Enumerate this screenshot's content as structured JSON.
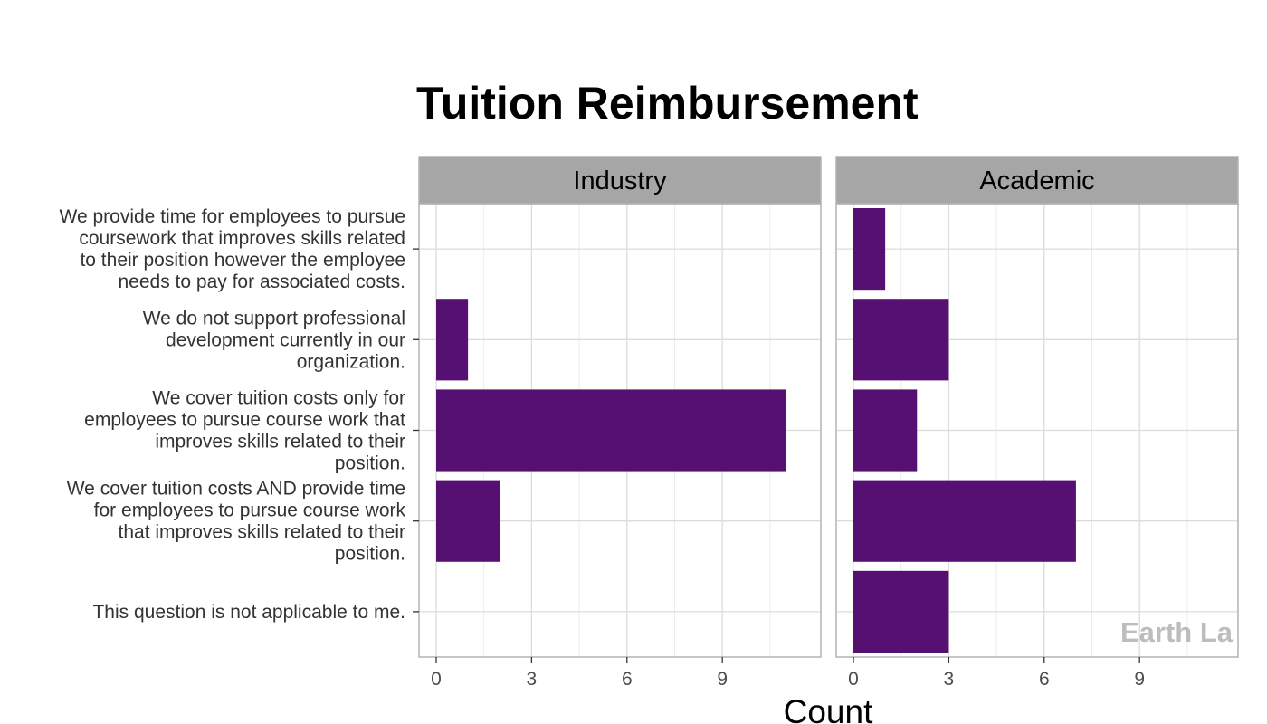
{
  "chart_data": {
    "type": "bar",
    "orientation": "horizontal",
    "title": "Tuition Reimbursement",
    "xlabel": "Count",
    "ylabel": "",
    "xlim": [
      0,
      11.5
    ],
    "xticks": [
      0,
      3,
      6,
      9
    ],
    "grid": true,
    "bar_color": "#551072",
    "categories": [
      [
        "We provide time for employees to pursue",
        "coursework that improves skills related",
        "to their position however the employee",
        "needs to pay for associated costs."
      ],
      [
        "We do not support professional",
        "development currently in our",
        "organization."
      ],
      [
        "We cover tuition costs only for",
        "employees to pursue course work that",
        "improves skills related to their",
        "position."
      ],
      [
        "We cover tuition costs AND provide time",
        "for employees to pursue course work",
        "that improves skills related to their",
        "position."
      ],
      [
        "This question is not applicable to me."
      ]
    ],
    "facets": [
      {
        "name": "Industry",
        "values": [
          0,
          1,
          11,
          2,
          0
        ]
      },
      {
        "name": "Academic",
        "values": [
          1,
          3,
          2,
          7,
          3
        ]
      }
    ],
    "watermark": "Earth La"
  },
  "colors": {
    "strip_background": "#a6a6a6",
    "panel_border": "#b3b3b3",
    "grid_major": "#dcdcdc",
    "grid_minor": "#ececec"
  }
}
